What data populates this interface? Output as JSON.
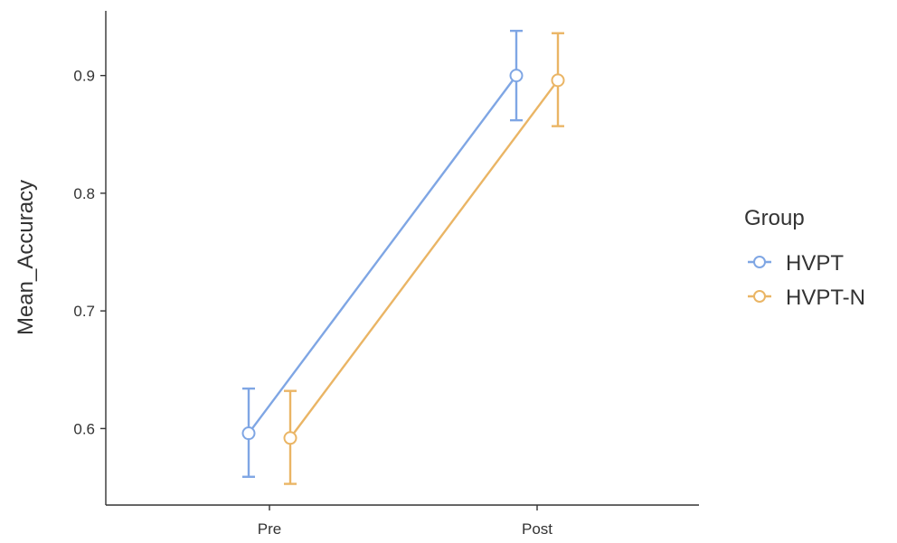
{
  "chart_data": {
    "type": "line",
    "title": "",
    "xlabel": "",
    "ylabel": "Mean_Accuracy",
    "categories": [
      "Pre",
      "Post"
    ],
    "y_ticks": [
      "0.6",
      "0.7",
      "0.8",
      "0.9"
    ],
    "ylim": [
      0.535,
      0.955
    ],
    "grid": false,
    "legend": {
      "title": "Group",
      "placement": "right"
    },
    "series": [
      {
        "name": "HVPT",
        "color": "#7fa6e4",
        "values": [
          0.596,
          0.9
        ],
        "error_low": [
          0.559,
          0.862
        ],
        "error_high": [
          0.634,
          0.938
        ]
      },
      {
        "name": "HVPT-N",
        "color": "#eab565",
        "values": [
          0.592,
          0.896
        ],
        "error_low": [
          0.553,
          0.857
        ],
        "error_high": [
          0.632,
          0.936
        ]
      }
    ]
  }
}
